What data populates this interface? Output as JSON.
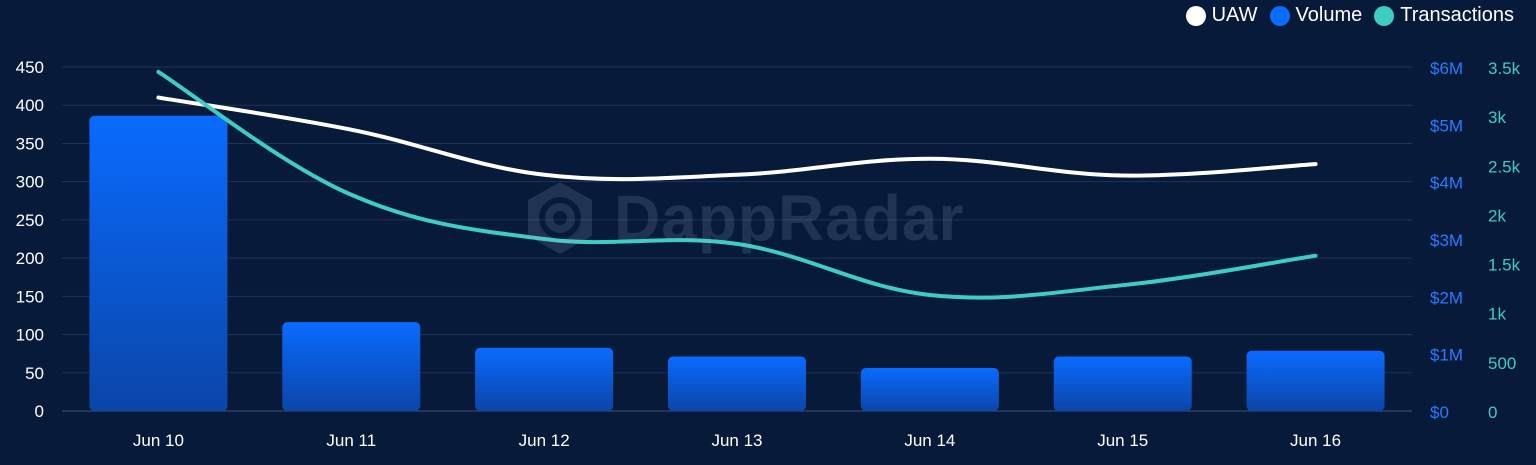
{
  "legend": [
    {
      "label": "UAW",
      "color": "#ffffff"
    },
    {
      "label": "Volume",
      "color": "#0a6bff"
    },
    {
      "label": "Transactions",
      "color": "#3ecdc1"
    }
  ],
  "watermark": {
    "text": "DappRadar"
  },
  "chart_data": {
    "type": "bar",
    "categories": [
      "Jun 10",
      "Jun 11",
      "Jun 12",
      "Jun 13",
      "Jun 14",
      "Jun 15",
      "Jun 16"
    ],
    "series": [
      {
        "name": "Volume",
        "type": "bar",
        "axis": "right1",
        "color": "#0a6bff",
        "values": [
          5150000,
          1550000,
          1100000,
          950000,
          750000,
          950000,
          1050000
        ]
      },
      {
        "name": "UAW",
        "type": "line",
        "axis": "left",
        "color": "#ffffff",
        "values": [
          410,
          368,
          309,
          309,
          330,
          308,
          323
        ]
      },
      {
        "name": "Transactions",
        "type": "line",
        "axis": "right2",
        "color": "#3ecdc1",
        "values": [
          3450,
          2200,
          1750,
          1700,
          1180,
          1280,
          1580
        ]
      }
    ],
    "axes": {
      "left": {
        "ylim": [
          0,
          450
        ],
        "ticks": [
          "0",
          "50",
          "100",
          "150",
          "200",
          "250",
          "300",
          "350",
          "400",
          "450"
        ]
      },
      "right1": {
        "ylim": [
          0,
          6000000
        ],
        "ticks": [
          "$0",
          "$1M",
          "$2M",
          "$3M",
          "$4M",
          "$5M",
          "$6M"
        ],
        "color": "#2a7bff"
      },
      "right2": {
        "ylim": [
          0,
          3500
        ],
        "ticks": [
          "0",
          "500",
          "1k",
          "1.5k",
          "2k",
          "2.5k",
          "3k",
          "3.5k"
        ],
        "color": "#3ecdc1"
      }
    },
    "grid": true,
    "legend_position": "top-right"
  }
}
